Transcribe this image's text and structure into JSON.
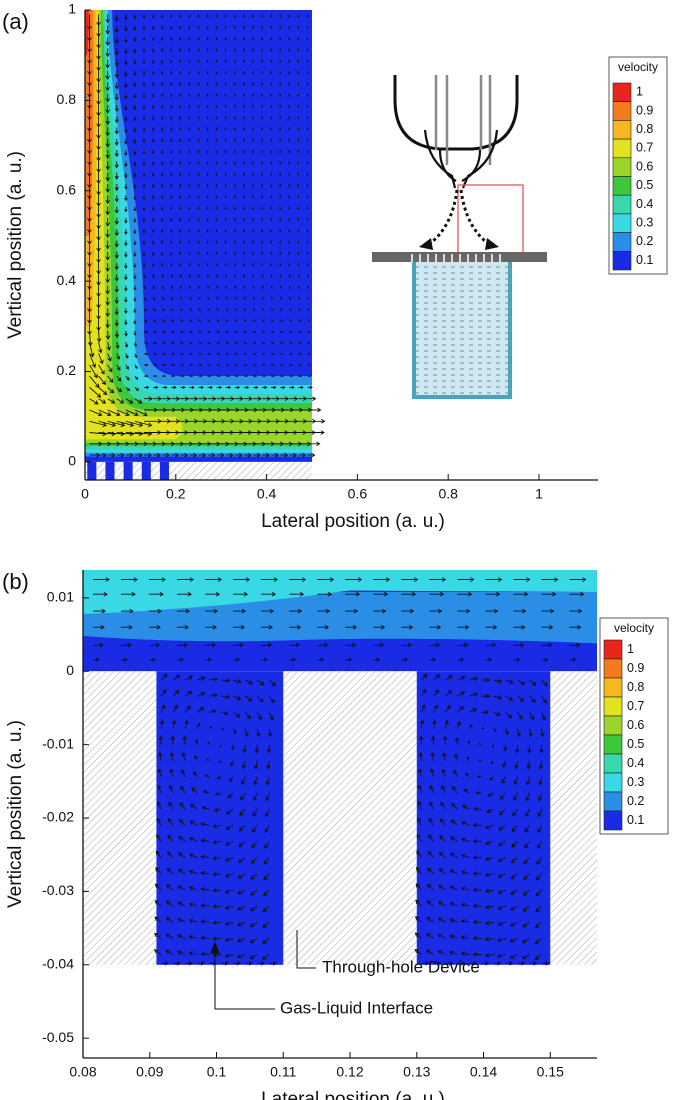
{
  "chart_data": [
    {
      "type": "contour",
      "panel": "(a)",
      "x_label": "Lateral position (a. u.)",
      "y_label": "Vertical position (a. u.)",
      "xlim": [
        0,
        1.13
      ],
      "ylim": [
        -0.04,
        1
      ],
      "xticks": [
        0,
        0.2,
        0.4,
        0.6,
        0.8,
        1
      ],
      "yticks": [
        0,
        0.2,
        0.4,
        0.6,
        0.8,
        1
      ],
      "legend": {
        "title": "velocity",
        "levels": [
          1,
          0.9,
          0.8,
          0.7,
          0.6,
          0.5,
          0.4,
          0.3,
          0.2,
          0.1
        ],
        "colors": [
          "#e8261c",
          "#f47a20",
          "#f6b81e",
          "#e2e21e",
          "#9ad62a",
          "#3cc83a",
          "#36d8ac",
          "#38d8e4",
          "#2a8ee6",
          "#1a2be6"
        ]
      }
    },
    {
      "type": "contour",
      "panel": "(b)",
      "x_label": "Lateral position (a. u.)",
      "y_label": "Vertical position (a. u.)",
      "xlim": [
        0.08,
        0.157
      ],
      "ylim": [
        -0.0527,
        0.0138
      ],
      "xticks": [
        0.08,
        0.09,
        0.1,
        0.11,
        0.12,
        0.13,
        0.14,
        0.15
      ],
      "yticks": [
        0.01,
        0,
        -0.01,
        -0.02,
        -0.03,
        -0.04,
        -0.05
      ],
      "legend": {
        "title": "velocity",
        "levels": [
          1,
          0.9,
          0.8,
          0.7,
          0.6,
          0.5,
          0.4,
          0.3,
          0.2,
          0.1
        ],
        "colors": [
          "#e8261c",
          "#f47a20",
          "#f6b81e",
          "#e2e21e",
          "#9ad62a",
          "#3cc83a",
          "#36d8ac",
          "#38d8e4",
          "#2a8ee6",
          "#1a2be6"
        ]
      },
      "annotations": [
        "Through-hole Device",
        "Gas-Liquid Interface"
      ]
    }
  ]
}
